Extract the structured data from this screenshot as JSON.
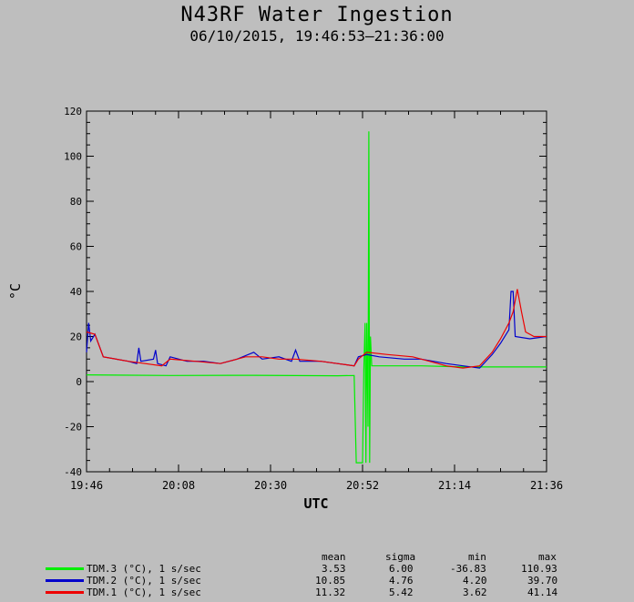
{
  "header": {
    "title": "N43RF Water Ingestion",
    "subtitle": "06/10/2015, 19:46:53–21:36:00"
  },
  "chart_data": {
    "type": "line",
    "title": "N43RF Water Ingestion",
    "subtitle": "06/10/2015, 19:46:53–21:36:00",
    "xlabel": "UTC",
    "ylabel": "°C",
    "x_ticks": [
      "19:46",
      "20:08",
      "20:30",
      "20:52",
      "21:14",
      "21:36"
    ],
    "x_range_minutes": [
      0,
      110
    ],
    "ylim": [
      -40,
      120
    ],
    "y_ticks": [
      -40,
      -20,
      0,
      20,
      40,
      60,
      80,
      100,
      120
    ],
    "series": [
      {
        "name": "TDM.3 (°C), 1 s/sec",
        "color": "#00ee00",
        "points": [
          [
            0,
            3
          ],
          [
            20,
            2.7
          ],
          [
            40,
            2.8
          ],
          [
            60,
            2.6
          ],
          [
            64,
            2.7
          ],
          [
            64.5,
            -36
          ],
          [
            66,
            -36
          ],
          [
            66.3,
            5
          ],
          [
            66.6,
            26
          ],
          [
            66.8,
            -36
          ],
          [
            67,
            26
          ],
          [
            67.3,
            -20
          ],
          [
            67.5,
            111
          ],
          [
            67.7,
            -36
          ],
          [
            67.9,
            20
          ],
          [
            68.2,
            7
          ],
          [
            80,
            7
          ],
          [
            90,
            6.5
          ],
          [
            110,
            6.5
          ]
        ]
      },
      {
        "name": "TDM.2 (°C), 1 s/sec",
        "color": "#0000cc",
        "points": [
          [
            0,
            13
          ],
          [
            0.5,
            26
          ],
          [
            1,
            18
          ],
          [
            2,
            21
          ],
          [
            4,
            11
          ],
          [
            10,
            9
          ],
          [
            12,
            8
          ],
          [
            12.5,
            15
          ],
          [
            13,
            9
          ],
          [
            16,
            10
          ],
          [
            16.5,
            14
          ],
          [
            17,
            8
          ],
          [
            19,
            7
          ],
          [
            20,
            11
          ],
          [
            24,
            9
          ],
          [
            28,
            9
          ],
          [
            32,
            8
          ],
          [
            36,
            10
          ],
          [
            40,
            13
          ],
          [
            42,
            10
          ],
          [
            46,
            11
          ],
          [
            49,
            9
          ],
          [
            50,
            14
          ],
          [
            51,
            9
          ],
          [
            56,
            9
          ],
          [
            60,
            8
          ],
          [
            64,
            7
          ],
          [
            65,
            11
          ],
          [
            67,
            12
          ],
          [
            70,
            11
          ],
          [
            76,
            10
          ],
          [
            80,
            10
          ],
          [
            86,
            8
          ],
          [
            90,
            7
          ],
          [
            94,
            6
          ],
          [
            97,
            12
          ],
          [
            99,
            17
          ],
          [
            101,
            23
          ],
          [
            101.5,
            40
          ],
          [
            102,
            40
          ],
          [
            102.5,
            20
          ],
          [
            106,
            19
          ],
          [
            110,
            20
          ]
        ]
      },
      {
        "name": "TDM.1 (°C), 1 s/sec",
        "color": "#ee0000",
        "points": [
          [
            0,
            22
          ],
          [
            2,
            21
          ],
          [
            4,
            11
          ],
          [
            10,
            9
          ],
          [
            14,
            8
          ],
          [
            18,
            7
          ],
          [
            20,
            10
          ],
          [
            26,
            9
          ],
          [
            32,
            8
          ],
          [
            38,
            11
          ],
          [
            42,
            11
          ],
          [
            46,
            10
          ],
          [
            50,
            10
          ],
          [
            56,
            9
          ],
          [
            60,
            8
          ],
          [
            64,
            7
          ],
          [
            65,
            10
          ],
          [
            67,
            13
          ],
          [
            72,
            12
          ],
          [
            78,
            11
          ],
          [
            82,
            9
          ],
          [
            86,
            7
          ],
          [
            90,
            6
          ],
          [
            94,
            7
          ],
          [
            97,
            13
          ],
          [
            99,
            19
          ],
          [
            101,
            26
          ],
          [
            102,
            31
          ],
          [
            103,
            41
          ],
          [
            104,
            31
          ],
          [
            105,
            22
          ],
          [
            107,
            20
          ],
          [
            110,
            20
          ]
        ]
      }
    ],
    "stats": {
      "headers": [
        "mean",
        "sigma",
        "min",
        "max"
      ],
      "rows": [
        {
          "label": "TDM.3 (°C), 1 s/sec",
          "values": [
            "3.53",
            "6.00",
            "-36.83",
            "110.93"
          ],
          "color": "#00ee00"
        },
        {
          "label": "TDM.2 (°C), 1 s/sec",
          "values": [
            "10.85",
            "4.76",
            "4.20",
            "39.70"
          ],
          "color": "#0000cc"
        },
        {
          "label": "TDM.1 (°C), 1 s/sec",
          "values": [
            "11.32",
            "5.42",
            "3.62",
            "41.14"
          ],
          "color": "#ee0000"
        }
      ]
    },
    "grid": false,
    "legend": "bottom-left"
  }
}
